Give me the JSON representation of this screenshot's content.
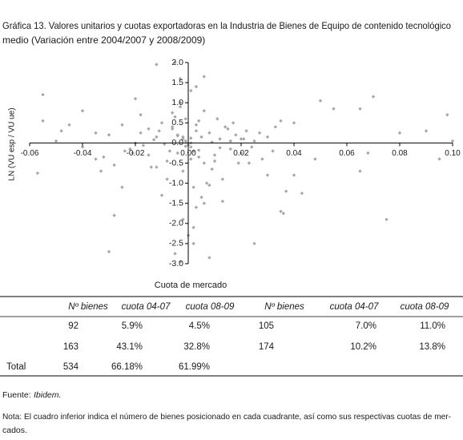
{
  "chart_data": {
    "type": "scatter",
    "title": [
      "Gráfica 13. Valores unitarios y cuotas exportadoras en la Industria de Bienes de Equipo de contenido tecnológico",
      "medio (Variación entre  2004/2007 y 2008/2009)"
    ],
    "ylabel": "LN (VU esp / VU ue)",
    "xlabel": "Cuota de mercado",
    "color": "#a6a6a6",
    "xlim": [
      -0.06,
      0.1
    ],
    "ylim": [
      -3.0,
      2.0
    ],
    "xticks": [
      -0.06,
      -0.04,
      -0.02,
      {
        "value": 0,
        "label": "0.00"
      },
      0.02,
      0.04,
      0.06,
      0.08,
      {
        "value": 0.1,
        "label": "0.10"
      }
    ],
    "yticks": [
      {
        "value": 2,
        "label": "2.0"
      },
      1.5,
      {
        "value": 1,
        "label": "1.0"
      },
      0.5,
      {
        "value": 0,
        "label": "0.0"
      },
      -0.5,
      {
        "value": -1,
        "label": "-1.0"
      },
      -1.5,
      {
        "value": -2,
        "label": "-2.0"
      },
      -2.5,
      {
        "value": -3,
        "label": "-3.0"
      }
    ],
    "x": [
      -0.055,
      -0.055,
      -0.057,
      -0.012,
      -0.005,
      0.006,
      -0.03,
      -0.028,
      -0.005,
      -0.003,
      0.008,
      0.025,
      0.035,
      0.036,
      0.05,
      0.055,
      0.065,
      0.07,
      0.075,
      0.098,
      0.1,
      0.095,
      0.09,
      0.08,
      0.068,
      0.065,
      0.048,
      0.04,
      0.035,
      0.04,
      0.037,
      0.043,
      -0.045,
      -0.04,
      -0.035,
      -0.033,
      -0.035,
      -0.04,
      -0.05,
      -0.048,
      -0.025,
      -0.02,
      -0.018,
      -0.015,
      -0.012,
      -0.01,
      -0.008,
      -0.006,
      -0.004,
      -0.002,
      0.001,
      0.002,
      0.003,
      0.004,
      0.005,
      0.006,
      0.008,
      0.01,
      0.012,
      0.014,
      0.016,
      0.018,
      0.02,
      0.022,
      0.025,
      0.028,
      0.03,
      0.032,
      -0.001,
      -0.002,
      -0.003,
      0.001,
      0.002,
      0.003,
      -0.001,
      0.0,
      0.001,
      -0.004,
      -0.006,
      -0.008,
      -0.01,
      -0.012,
      -0.015,
      -0.018,
      -0.02,
      -0.022,
      -0.025,
      -0.028,
      -0.03,
      -0.032,
      0.004,
      0.006,
      0.009,
      0.011,
      0.013,
      0.015,
      0.017,
      0.019,
      0.021,
      0.024,
      0.027,
      0.03,
      0.033,
      0.002,
      0.0,
      -0.002,
      0.003,
      -0.003,
      0.005,
      -0.005,
      0.007,
      -0.007,
      0.001,
      -0.001,
      0.004,
      -0.004,
      0.009,
      -0.009,
      0.012,
      -0.013,
      0.016,
      -0.017,
      0.02,
      -0.021,
      0.01,
      -0.011,
      0.002,
      -0.003,
      0.006,
      -0.006,
      0.008,
      -0.014,
      0.023,
      -0.024,
      0.013,
      -0.002,
      0.001,
      0.003
    ],
    "values": [
      1.2,
      0.55,
      -0.75,
      1.95,
      2.0,
      1.65,
      -2.7,
      -1.8,
      -2.75,
      -2.95,
      -2.85,
      -2.5,
      -1.7,
      -1.75,
      1.05,
      0.85,
      0.85,
      1.15,
      -1.9,
      0.7,
      0.05,
      -0.4,
      0.3,
      0.25,
      -0.25,
      -0.7,
      -0.4,
      0.5,
      0.55,
      -0.8,
      -1.2,
      -1.25,
      0.45,
      0.8,
      0.25,
      -0.7,
      -0.4,
      -0.1,
      0.05,
      0.3,
      -1.1,
      1.1,
      0.7,
      0.35,
      -0.6,
      -1.3,
      -0.9,
      0.4,
      0.2,
      0.1,
      -0.1,
      -0.2,
      0.3,
      -0.35,
      0.15,
      -0.5,
      0.25,
      -0.3,
      0.1,
      0.4,
      -0.15,
      0.2,
      -0.25,
      0.3,
      0.05,
      -0.4,
      0.15,
      -0.2,
      0.6,
      -0.7,
      1.0,
      1.3,
      -1.1,
      -1.6,
      0.05,
      -0.05,
      0.0,
      -0.25,
      0.35,
      -0.45,
      0.5,
      0.15,
      -0.3,
      0.25,
      0.0,
      -0.15,
      0.45,
      -0.55,
      0.2,
      -0.35,
      0.55,
      0.8,
      -0.65,
      0.6,
      -0.9,
      0.35,
      0.5,
      -0.5,
      0.1,
      -0.1,
      0.25,
      -0.8,
      0.4,
      -2.1,
      -2.3,
      -1.9,
      1.4,
      0.9,
      -1.35,
      0.65,
      -1.0,
      -0.2,
      0.12,
      -0.08,
      -0.18,
      0.18,
      0.02,
      -0.03,
      -0.12,
      0.08,
      0.05,
      -0.06,
      0.1,
      -0.25,
      -0.45,
      0.3,
      -2.5,
      1.6,
      -1.5,
      0.75,
      -1.05,
      -0.6,
      -0.5,
      -0.2,
      -1.45,
      0.15,
      -0.4,
      0.45
    ]
  },
  "table": {
    "headers": [
      "Nº bienes",
      "cuota 04-07",
      "cuota 08-09",
      "Nº bienes",
      "cuota 04-07",
      "cuota 08-09"
    ],
    "rows": [
      {
        "cells": [
          "92",
          "5.9%",
          "4.5%",
          "105",
          "7.0%",
          "11.0%"
        ]
      },
      {
        "cells": [
          "163",
          "43.1%",
          "32.8%",
          "174",
          "10.2%",
          "13.8%"
        ]
      },
      {
        "label": "Total",
        "cells": [
          "534",
          "66.18%",
          "61.99%"
        ]
      }
    ]
  },
  "source": {
    "prefix": "Fuente:",
    "name": "Ibidem."
  },
  "note": [
    "Nota: El cuadro inferior indica el número de bienes posicionado en cada cuadrante, así como sus respectivas cuotas de mer-",
    "cados."
  ]
}
